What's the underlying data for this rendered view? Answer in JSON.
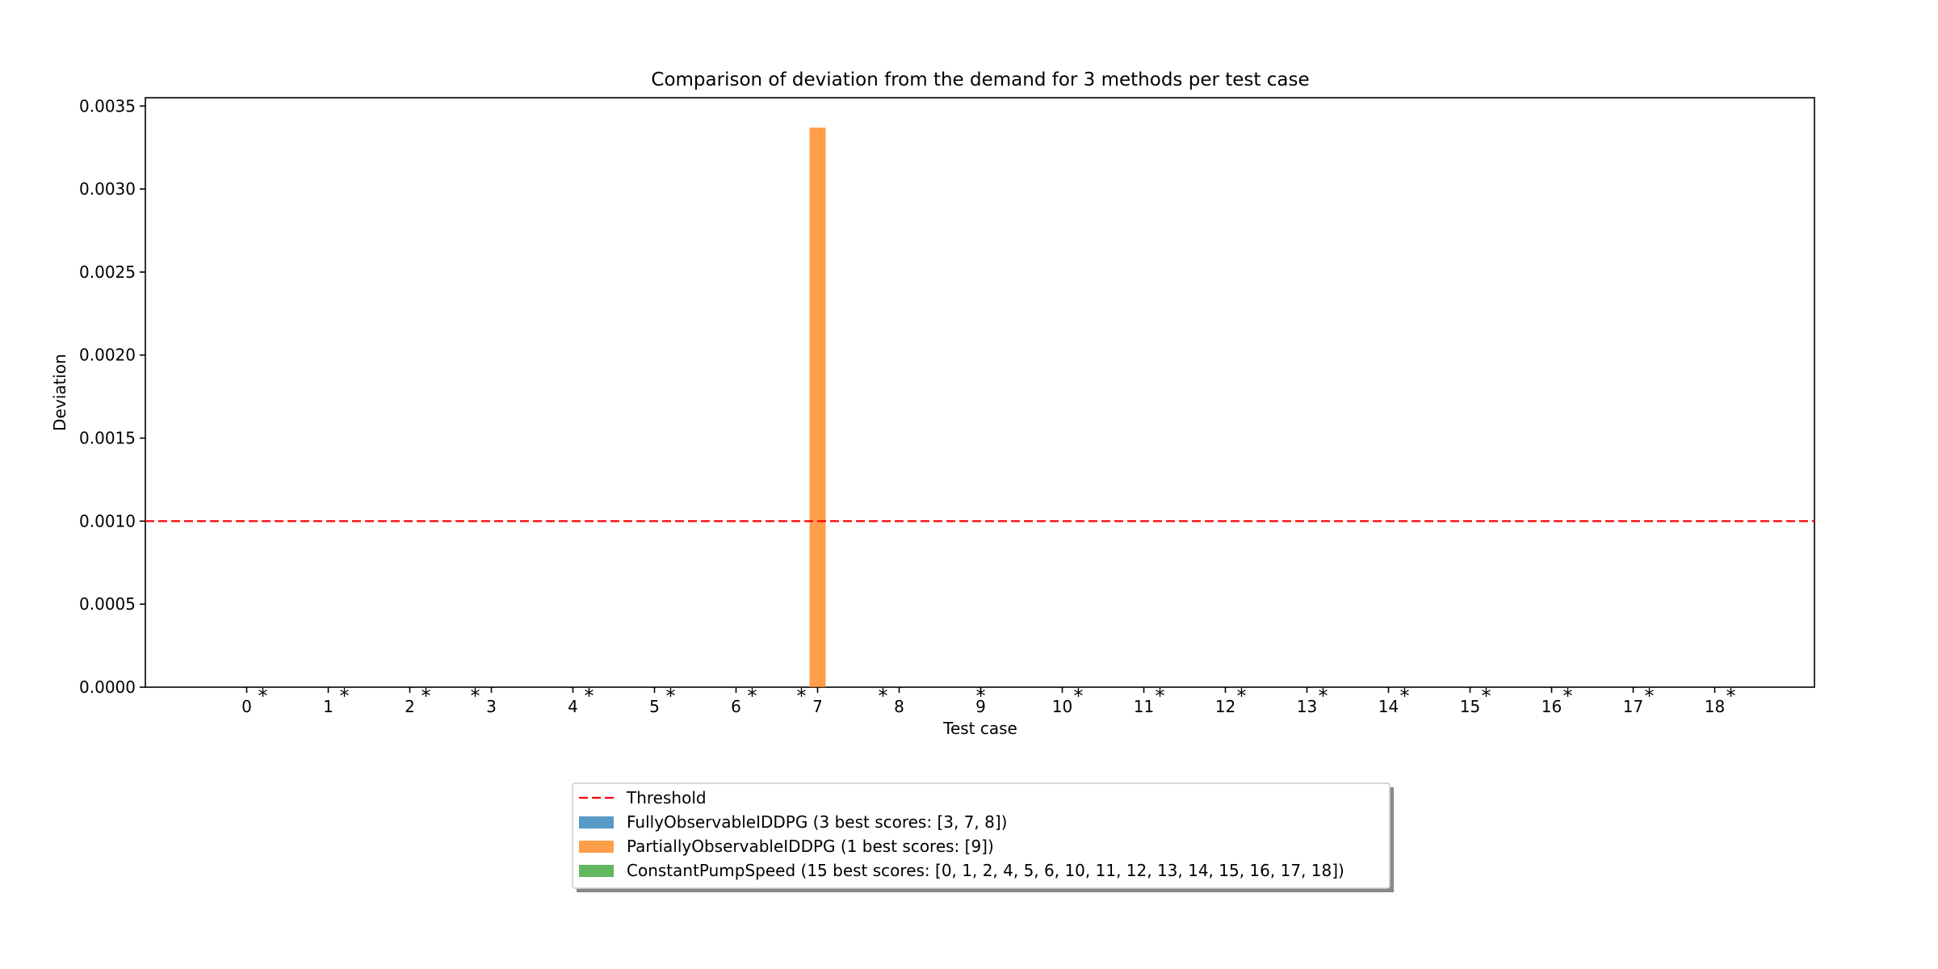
{
  "chart_data": {
    "type": "bar",
    "title": "Comparison of deviation from the demand for 3 methods per test case",
    "xlabel": "Test case",
    "ylabel": "Deviation",
    "ylim": [
      0,
      0.00355
    ],
    "yticks": [
      "0.0000",
      "0.0005",
      "0.0010",
      "0.0015",
      "0.0020",
      "0.0025",
      "0.0030",
      "0.0035"
    ],
    "ytick_values": [
      0,
      0.0005,
      0.001,
      0.0015,
      0.002,
      0.0025,
      0.003,
      0.0035
    ],
    "categories": [
      "0",
      "1",
      "2",
      "3",
      "4",
      "5",
      "6",
      "7",
      "8",
      "9",
      "10",
      "11",
      "12",
      "13",
      "14",
      "15",
      "16",
      "17",
      "18"
    ],
    "series": [
      {
        "name": "FullyObservableIDDPG (3 best scores: [3, 7, 8])",
        "color": "#1f77b4",
        "values": [
          0,
          0,
          0,
          0,
          0,
          0,
          0,
          0,
          0,
          0,
          0,
          0,
          0,
          0,
          0,
          0,
          0,
          0,
          0
        ]
      },
      {
        "name": "PartiallyObservableIDDPG (1 best scores: [9])",
        "color": "#ff7f0e",
        "values": [
          0,
          0,
          0,
          0,
          0,
          0,
          0,
          0.00337,
          0,
          0,
          0,
          0,
          0,
          0,
          0,
          0,
          0,
          0,
          0
        ]
      },
      {
        "name": "ConstantPumpSpeed (15 best scores: [0, 1, 2, 4, 5, 6, 10, 11, 12, 13, 14, 15, 16, 17, 18])",
        "color": "#2ca02c",
        "values": [
          0,
          0,
          0,
          0,
          0,
          0,
          0,
          0,
          0,
          0,
          0,
          0,
          0,
          0,
          0,
          0,
          0,
          0,
          0
        ]
      }
    ],
    "best_marker": "*",
    "best_method_per_case": [
      2,
      2,
      2,
      0,
      2,
      2,
      2,
      0,
      0,
      1,
      2,
      2,
      2,
      2,
      2,
      2,
      2,
      2,
      2
    ],
    "threshold": {
      "name": "Threshold",
      "value": 0.001,
      "color": "#ff0000"
    },
    "legend_position": "below"
  }
}
